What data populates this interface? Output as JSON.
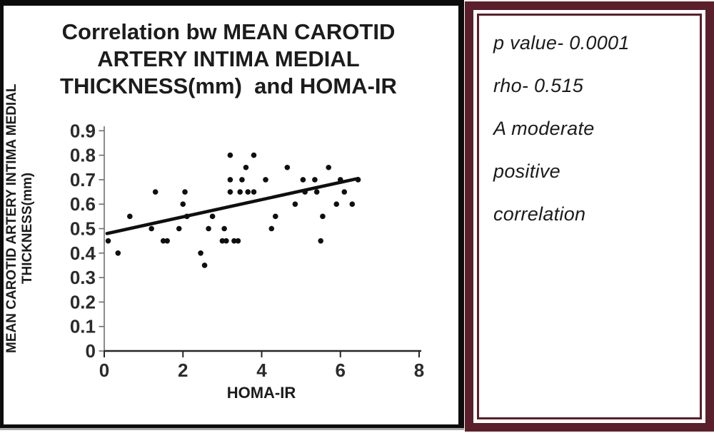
{
  "figure": {
    "chart_panel": {
      "title_lines": [
        "Correlation bw MEAN CAROTID",
        "ARTERY INTIMA MEDIAL",
        "THICKNESS(mm)  and HOMA-IR"
      ],
      "y_axis_title_lines": [
        "MEAN CAROTID ARTERY INTIMA MEDIAL",
        "THICKNESS(mm)"
      ],
      "x_axis_title": "HOMA-IR",
      "border_color": "#0c0c0c"
    },
    "stats_panel": {
      "lines": [
        "p value- 0.0001",
        "rho- 0.515",
        "A moderate",
        "positive",
        "correlation"
      ],
      "border_color": "#5a1f2a",
      "text_color": "#1b1b1b"
    }
  },
  "chart_data": {
    "type": "scatter",
    "title": "Correlation bw MEAN CAROTID ARTERY INTIMA MEDIAL THICKNESS(mm) and HOMA-IR",
    "xlabel": "HOMA-IR",
    "ylabel": "MEAN CAROTID ARTERY INTIMA MEDIAL THICKNESS(mm)",
    "xlim": [
      0,
      8
    ],
    "ylim": [
      0,
      0.9
    ],
    "grid": false,
    "legend_position": "none",
    "x_ticks": [
      {
        "v": 0,
        "label": "0"
      },
      {
        "v": 2,
        "label": "2"
      },
      {
        "v": 4,
        "label": "4"
      },
      {
        "v": 6,
        "label": "6"
      },
      {
        "v": 8,
        "label": "8"
      }
    ],
    "y_ticks": [
      {
        "v": 0,
        "label": "0"
      },
      {
        "v": 0.1,
        "label": "0.1"
      },
      {
        "v": 0.2,
        "label": "0.2"
      },
      {
        "v": 0.3,
        "label": "0.3"
      },
      {
        "v": 0.4,
        "label": "0.4"
      },
      {
        "v": 0.5,
        "label": "0.5"
      },
      {
        "v": 0.6,
        "label": "0.6"
      },
      {
        "v": 0.7,
        "label": "0.7"
      },
      {
        "v": 0.8,
        "label": "0.8"
      },
      {
        "v": 0.9,
        "label": "0.9"
      }
    ],
    "points": [
      [
        0.1,
        0.45
      ],
      [
        0.35,
        0.4
      ],
      [
        0.65,
        0.55
      ],
      [
        1.2,
        0.5
      ],
      [
        1.3,
        0.65
      ],
      [
        1.5,
        0.45
      ],
      [
        1.6,
        0.45
      ],
      [
        1.9,
        0.5
      ],
      [
        2.0,
        0.6
      ],
      [
        2.05,
        0.65
      ],
      [
        2.1,
        0.55
      ],
      [
        2.45,
        0.4
      ],
      [
        2.55,
        0.35
      ],
      [
        2.65,
        0.5
      ],
      [
        2.75,
        0.55
      ],
      [
        3.0,
        0.45
      ],
      [
        3.05,
        0.5
      ],
      [
        3.1,
        0.45
      ],
      [
        3.2,
        0.65
      ],
      [
        3.2,
        0.7
      ],
      [
        3.2,
        0.8
      ],
      [
        3.3,
        0.45
      ],
      [
        3.4,
        0.45
      ],
      [
        3.45,
        0.65
      ],
      [
        3.5,
        0.7
      ],
      [
        3.6,
        0.75
      ],
      [
        3.65,
        0.65
      ],
      [
        3.8,
        0.65
      ],
      [
        3.8,
        0.8
      ],
      [
        4.1,
        0.7
      ],
      [
        4.25,
        0.5
      ],
      [
        4.35,
        0.55
      ],
      [
        4.65,
        0.75
      ],
      [
        4.85,
        0.6
      ],
      [
        5.05,
        0.7
      ],
      [
        5.1,
        0.65
      ],
      [
        5.35,
        0.7
      ],
      [
        5.4,
        0.65
      ],
      [
        5.5,
        0.45
      ],
      [
        5.55,
        0.55
      ],
      [
        5.7,
        0.75
      ],
      [
        5.9,
        0.6
      ],
      [
        6.0,
        0.7
      ],
      [
        6.1,
        0.65
      ],
      [
        6.3,
        0.6
      ],
      [
        6.45,
        0.7
      ]
    ],
    "trendline": {
      "x1": 0.07,
      "y1": 0.48,
      "x2": 6.45,
      "y2": 0.705
    },
    "marker_color": "#0f0f0f",
    "trend_color": "#0f0f0f",
    "axis_color": "#6e6e6e",
    "x_axis_color": "#262626",
    "tick_label_color": "#2b2b2b"
  }
}
